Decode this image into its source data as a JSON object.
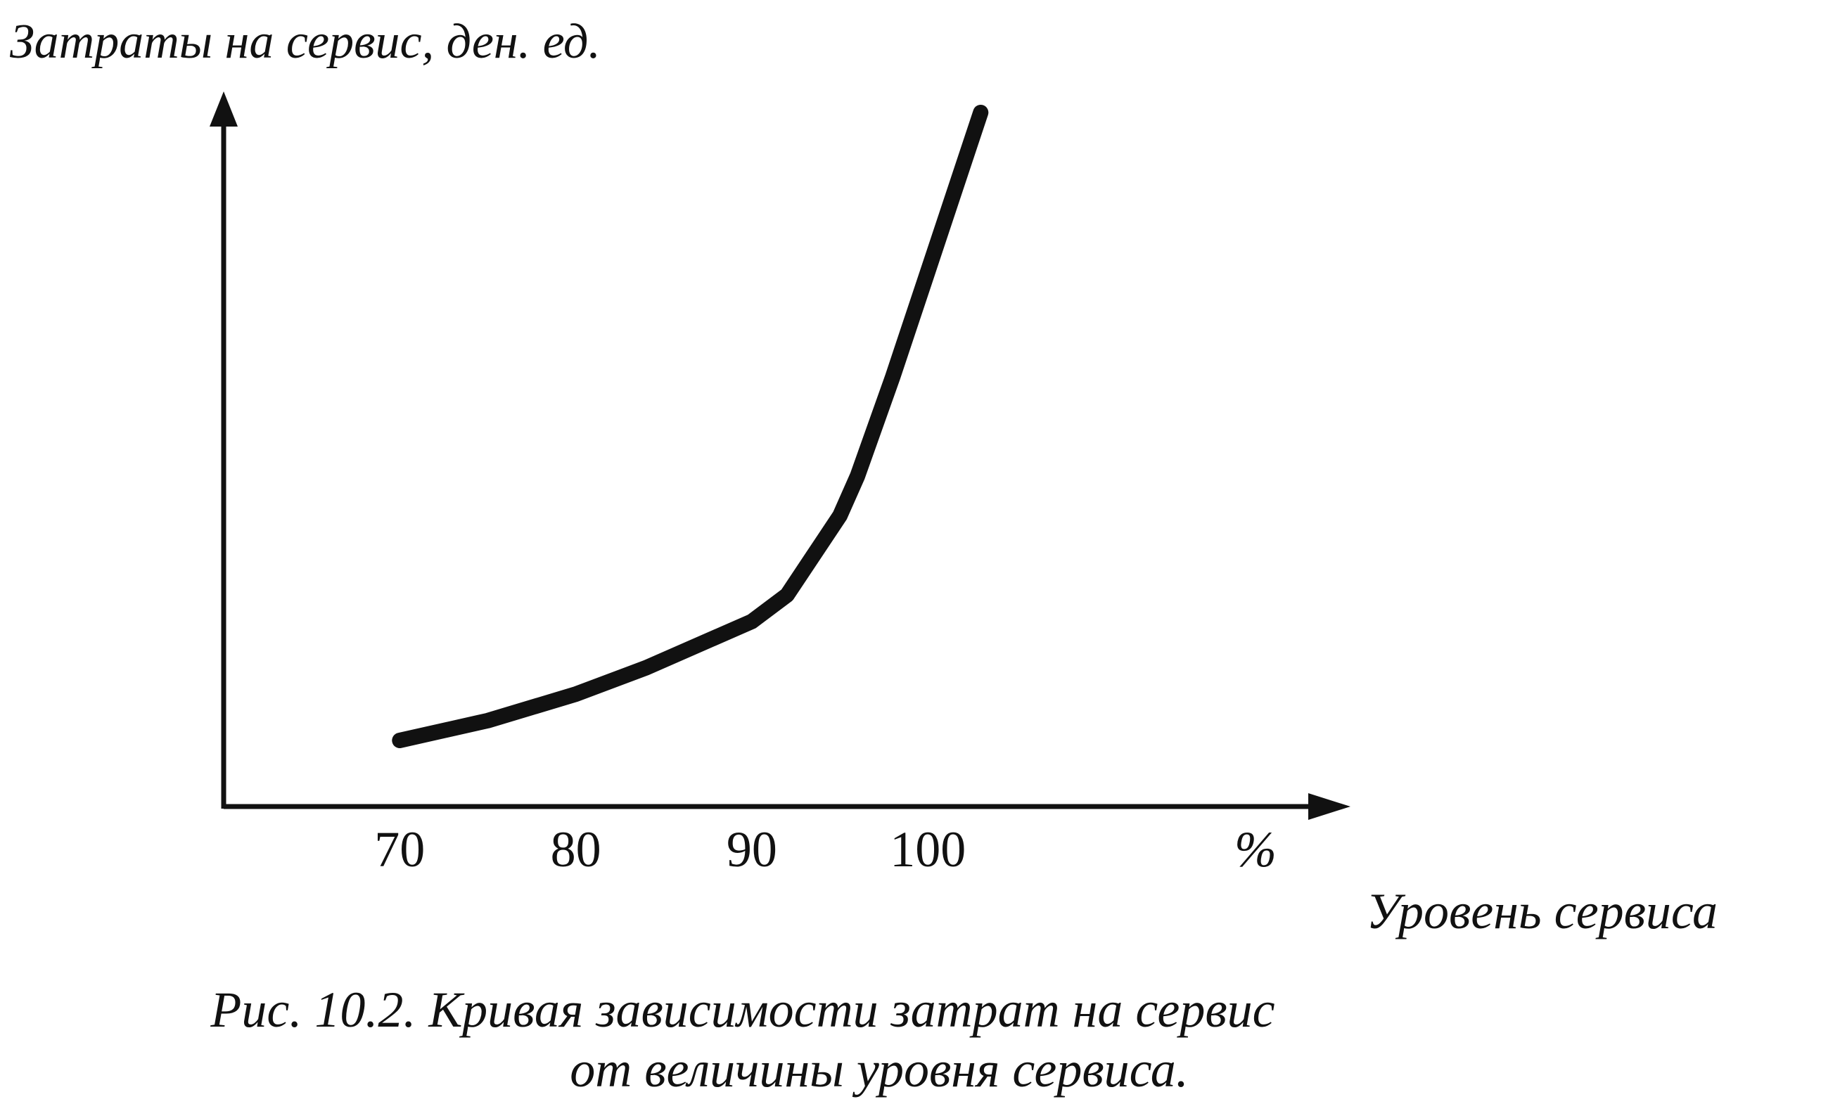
{
  "chart_data": {
    "type": "line",
    "title": "",
    "ylabel": "Затраты на сервис, ден. ед.",
    "xlabel": "Уровень сервиса",
    "x_unit_label": "%",
    "x_ticks": [
      "70",
      "80",
      "90",
      "100"
    ],
    "xlim": [
      60,
      124
    ],
    "ylim": [
      0,
      100
    ],
    "grid": false,
    "legend": "none",
    "line_color": "#111111",
    "series": [
      {
        "x": [
          70,
          75,
          80,
          84,
          90,
          92,
          95,
          96,
          98,
          100,
          103
        ],
        "y": [
          5,
          8,
          12,
          16,
          23,
          27,
          39,
          45,
          60,
          76,
          100
        ]
      }
    ],
    "caption": {
      "line1": "Рис. 10.2. Кривая зависимости затрат на сервис",
      "line2": "от величины уровня сервиса."
    }
  }
}
